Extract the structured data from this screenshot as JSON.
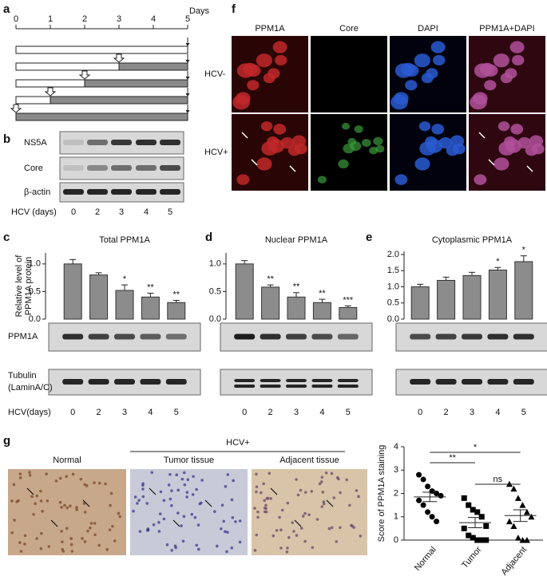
{
  "panel_labels": [
    "a",
    "b",
    "c",
    "d",
    "e",
    "f",
    "g"
  ],
  "timeline": {
    "unit": "Days",
    "ticks": [
      0,
      1,
      2,
      3,
      4,
      5
    ],
    "infection_day": [
      5,
      3,
      2,
      1,
      0
    ]
  },
  "blot_b": {
    "rows": [
      "NS5A",
      "Core",
      "β-actin"
    ],
    "x_label": "HCV (days)",
    "lanes": [
      "0",
      "2",
      "3",
      "4",
      "5"
    ]
  },
  "blot_cde": {
    "rows": [
      "PPM1A",
      "Tubulin"
    ],
    "row_note": "(LaminA/C)",
    "x_label": "HCV(days)"
  },
  "microscopy": {
    "columns": [
      "PPM1A",
      "Core",
      "DAPI",
      "PPM1A+DAPI"
    ],
    "rows": [
      "HCV-",
      "HCV+"
    ]
  },
  "ihc": {
    "group": "HCV+",
    "images": [
      "Normal",
      "Tumor tissue",
      "Adjacent tissue"
    ]
  },
  "chart_data": [
    {
      "type": "bar",
      "title": "Total PPM1A",
      "ylabel": [
        "Relative level of",
        "PPM1A protein"
      ],
      "categories": [
        "0",
        "2",
        "3",
        "4",
        "5"
      ],
      "values": [
        1.0,
        0.8,
        0.52,
        0.4,
        0.3
      ],
      "errors": [
        0.08,
        0.04,
        0.1,
        0.07,
        0.04
      ],
      "sig_labels": [
        null,
        null,
        "*",
        "**",
        "**"
      ],
      "color": "#8c8c8c",
      "ylim": [
        0,
        1.2
      ],
      "yticks": [
        {
          "value": 0,
          "label": "0.0"
        },
        0.5,
        {
          "value": 1,
          "label": "1.0"
        }
      ]
    },
    {
      "type": "bar",
      "title": "Nuclear PPM1A",
      "categories": [
        "0",
        "2",
        "3",
        "4",
        "5"
      ],
      "values": [
        1.0,
        0.58,
        0.4,
        0.3,
        0.21
      ],
      "errors": [
        0.06,
        0.04,
        0.08,
        0.06,
        0.03
      ],
      "sig_labels": [
        null,
        "**",
        "**",
        "**",
        "***"
      ],
      "color": "#8c8c8c",
      "ylim": [
        0,
        1.2
      ],
      "yticks": [
        {
          "value": 0,
          "label": "0.0"
        },
        0.5,
        {
          "value": 1,
          "label": "1.0"
        }
      ]
    },
    {
      "type": "bar",
      "title": "Cytoplasmic PPM1A",
      "categories": [
        "0",
        "2",
        "3",
        "4",
        "5"
      ],
      "values": [
        1.0,
        1.2,
        1.35,
        1.52,
        1.78
      ],
      "errors": [
        0.08,
        0.1,
        0.1,
        0.08,
        0.18
      ],
      "sig_labels": [
        null,
        null,
        null,
        "*",
        "*"
      ],
      "color": "#8c8c8c",
      "ylim": [
        0,
        2.1
      ],
      "yticks": [
        {
          "value": 0,
          "label": "0.0"
        },
        0.5,
        {
          "value": 1,
          "label": "1.0"
        },
        1.5,
        {
          "value": 2,
          "label": "2.0"
        }
      ]
    },
    {
      "type": "scatter",
      "ylabel": "Score of PPM1A staining",
      "categories": [
        "Normal",
        "Tumor",
        "Adjacent"
      ],
      "markers": [
        "circle",
        "square",
        "triangle"
      ],
      "color": "#000000",
      "points": [
        [
          2.8,
          2.6,
          2.3,
          2.1,
          2.0,
          1.9,
          1.7,
          1.5,
          1.2,
          1.0,
          0.8
        ],
        [
          1.8,
          1.5,
          1.3,
          1.2,
          1.0,
          0.6,
          0.5,
          0.2,
          0.1,
          0,
          0,
          0
        ],
        [
          2.4,
          2.2,
          1.8,
          1.5,
          1.2,
          1.0,
          0.8,
          0.6,
          0.1,
          0,
          0
        ]
      ],
      "means": [
        1.85,
        0.75,
        1.05
      ],
      "errors": [
        0.2,
        0.22,
        0.25
      ],
      "brackets": [
        {
          "pair": [
            "Normal",
            "Tumor"
          ],
          "text": "**"
        },
        {
          "pair": [
            "Normal",
            "Adjacent"
          ],
          "text": "*"
        },
        {
          "pair": [
            "Tumor",
            "Adjacent"
          ],
          "text": "ns"
        }
      ],
      "ylim": [
        0,
        4
      ],
      "yticks": [
        0,
        1,
        2,
        3,
        4
      ]
    }
  ]
}
